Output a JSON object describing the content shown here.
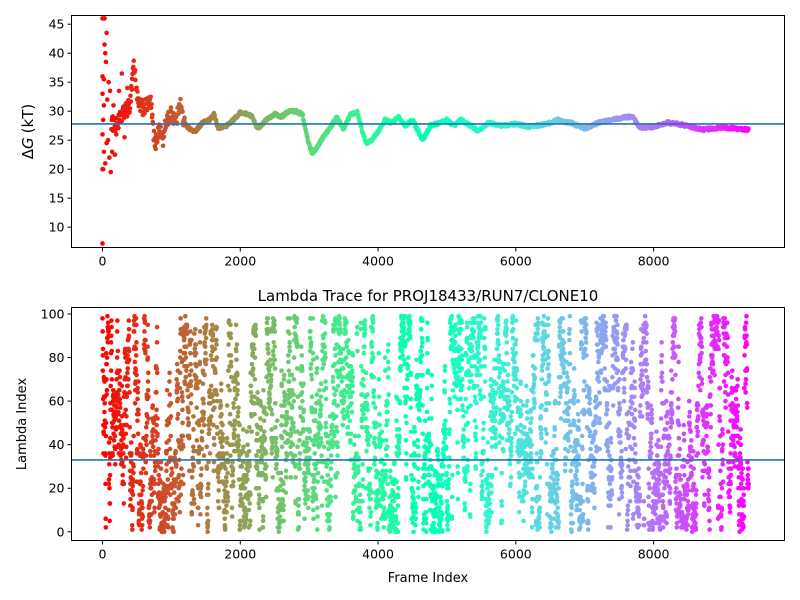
{
  "chart_data": [
    {
      "type": "scatter",
      "title": "",
      "xlabel": "",
      "ylabel": "ΔG (kT)",
      "ylabel_delta": "Δ",
      "ylabel_symbol": "G",
      "ylabel_unit": "(kT)",
      "xlim": [
        -450,
        9900
      ],
      "ylim": [
        6.5,
        46.5
      ],
      "xticks": [
        0,
        2000,
        4000,
        6000,
        8000
      ],
      "yticks": [
        10,
        15,
        20,
        25,
        30,
        35,
        40,
        45
      ],
      "hline": 27.8,
      "hline_color": "#1f77b4",
      "colormap": "rainbow",
      "x_max": 9380,
      "trace": [
        [
          130,
          28.0
        ],
        [
          200,
          27.5
        ],
        [
          300,
          29.5
        ],
        [
          400,
          31.0
        ],
        [
          450,
          38.5
        ],
        [
          520,
          31.0
        ],
        [
          600,
          30.5
        ],
        [
          700,
          31.5
        ],
        [
          760,
          24.0
        ],
        [
          820,
          27.0
        ],
        [
          880,
          25.0
        ],
        [
          930,
          28.5
        ],
        [
          1000,
          29.5
        ],
        [
          1080,
          28.5
        ],
        [
          1120,
          32.0
        ],
        [
          1180,
          28.0
        ],
        [
          1260,
          27.0
        ],
        [
          1340,
          26.5
        ],
        [
          1450,
          28.0
        ],
        [
          1560,
          28.5
        ],
        [
          1620,
          29.5
        ],
        [
          1680,
          27.0
        ],
        [
          1800,
          27.5
        ],
        [
          1900,
          28.5
        ],
        [
          2000,
          29.8
        ],
        [
          2100,
          29.5
        ],
        [
          2180,
          29.0
        ],
        [
          2250,
          27.0
        ],
        [
          2380,
          28.5
        ],
        [
          2500,
          29.5
        ],
        [
          2600,
          29.0
        ],
        [
          2700,
          30.0
        ],
        [
          2800,
          30.0
        ],
        [
          2900,
          29.5
        ],
        [
          2980,
          25.0
        ],
        [
          3040,
          22.8
        ],
        [
          3100,
          23.5
        ],
        [
          3200,
          25.5
        ],
        [
          3300,
          27.0
        ],
        [
          3400,
          29.0
        ],
        [
          3500,
          27.0
        ],
        [
          3600,
          29.5
        ],
        [
          3700,
          29.8
        ],
        [
          3760,
          27.0
        ],
        [
          3830,
          24.5
        ],
        [
          3900,
          25.0
        ],
        [
          4000,
          26.5
        ],
        [
          4100,
          28.5
        ],
        [
          4200,
          28.0
        ],
        [
          4300,
          29.0
        ],
        [
          4400,
          27.5
        ],
        [
          4500,
          28.5
        ],
        [
          4650,
          25.0
        ],
        [
          4760,
          27.5
        ],
        [
          4900,
          28.0
        ],
        [
          5000,
          28.5
        ],
        [
          5100,
          27.5
        ],
        [
          5200,
          28.5
        ],
        [
          5350,
          27.5
        ],
        [
          5460,
          26.5
        ],
        [
          5600,
          28.0
        ],
        [
          5800,
          27.5
        ],
        [
          6000,
          27.8
        ],
        [
          6200,
          27.3
        ],
        [
          6450,
          27.8
        ],
        [
          6600,
          28.5
        ],
        [
          6800,
          28.0
        ],
        [
          7000,
          27.0
        ],
        [
          7200,
          28.0
        ],
        [
          7400,
          28.5
        ],
        [
          7600,
          29.0
        ],
        [
          7700,
          29.0
        ],
        [
          7800,
          27.0
        ],
        [
          8000,
          27.3
        ],
        [
          8200,
          28.0
        ],
        [
          8350,
          27.8
        ],
        [
          8550,
          27.3
        ],
        [
          8700,
          26.8
        ],
        [
          9000,
          27.2
        ],
        [
          9200,
          27.0
        ],
        [
          9380,
          26.8
        ]
      ],
      "early_points": [
        [
          0,
          7.2
        ],
        [
          0,
          20.0
        ],
        [
          0,
          26.0
        ],
        [
          0,
          33.0
        ],
        [
          0,
          36.0
        ],
        [
          0,
          46.0
        ],
        [
          10,
          20.0
        ],
        [
          10,
          28.5
        ],
        [
          20,
          23.0
        ],
        [
          20,
          31.0
        ],
        [
          20,
          35.5
        ],
        [
          30,
          41.5
        ],
        [
          30,
          46.0
        ],
        [
          40,
          40.0
        ],
        [
          40,
          21.0
        ],
        [
          50,
          38.5
        ],
        [
          60,
          43.5
        ],
        [
          60,
          24.5
        ],
        [
          70,
          32.0
        ],
        [
          80,
          25.0
        ],
        [
          90,
          35.0
        ],
        [
          100,
          22.0
        ],
        [
          110,
          33.5
        ],
        [
          120,
          19.5
        ],
        [
          140,
          23.0
        ],
        [
          160,
          31.0
        ],
        [
          180,
          22.5
        ],
        [
          200,
          26.0
        ],
        [
          240,
          33.5
        ],
        [
          280,
          36.5
        ],
        [
          320,
          25.5
        ],
        [
          360,
          34.0
        ]
      ]
    },
    {
      "type": "scatter",
      "title": "Lambda Trace for PROJ18433/RUN7/CLONE10",
      "xlabel": "Frame Index",
      "ylabel": "Lambda Index",
      "xlim": [
        -450,
        9900
      ],
      "ylim": [
        -4,
        103
      ],
      "xticks": [
        0,
        2000,
        4000,
        6000,
        8000
      ],
      "yticks": [
        0,
        20,
        40,
        60,
        80,
        100
      ],
      "hline": 33,
      "hline_color": "#1f77b4",
      "colormap": "rainbow",
      "x_max": 9380,
      "lambda_min": 0,
      "lambda_max": 99,
      "n_points": 4700,
      "seed": 18433
    }
  ]
}
